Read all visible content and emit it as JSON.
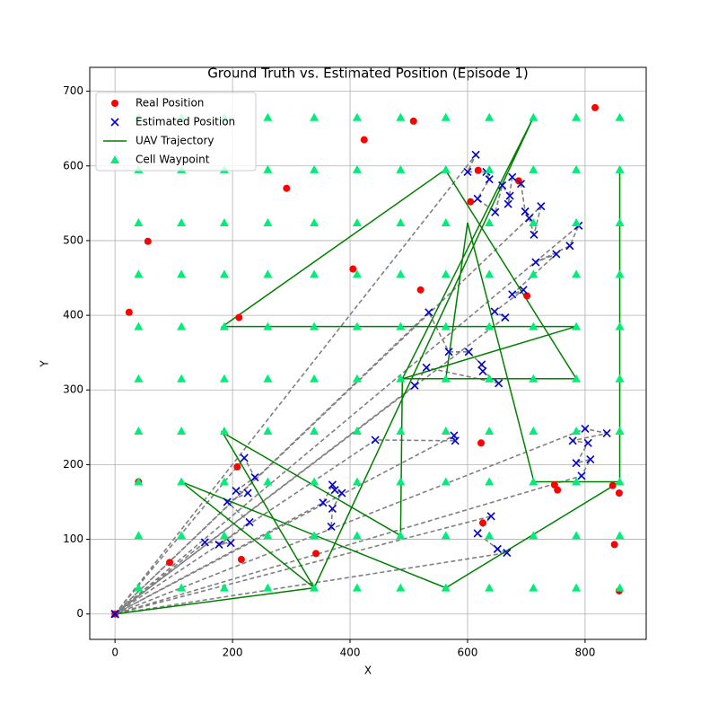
{
  "chart_data": {
    "type": "scatter",
    "title": "Ground Truth vs. Estimated Position (Episode 1)",
    "x_label": "X",
    "y_label": "Y",
    "xlim": [
      -43,
      904
    ],
    "ylim": [
      -34,
      732
    ],
    "xticks": [
      0,
      200,
      400,
      600,
      800
    ],
    "yticks": [
      0,
      100,
      200,
      300,
      400,
      500,
      600,
      700
    ],
    "grid": true,
    "legend": "upper left",
    "series": [
      {
        "name": "Real Position",
        "color": "#ff0000",
        "marker": "circle",
        "x": [
          0,
          24,
          56,
          40,
          93,
          208,
          215,
          292,
          342,
          405,
          424,
          508,
          520,
          605,
          618,
          623,
          626,
          687,
          701,
          748,
          753,
          817,
          850,
          847,
          858,
          858,
          211
        ],
        "y": [
          0,
          404,
          499,
          177,
          69,
          197,
          73,
          570,
          81,
          462,
          635,
          660,
          434,
          552,
          594,
          229,
          122,
          580,
          426,
          173,
          166,
          678,
          93,
          172,
          162,
          31,
          397
        ]
      },
      {
        "name": "Estimated Position",
        "color": "#0000cc",
        "marker": "x",
        "x": [
          0,
          614,
          600,
          632,
          637,
          617,
          647,
          659,
          672,
          669,
          676,
          691,
          698,
          705,
          713,
          725,
          0,
          789,
          774,
          716,
          751,
          676,
          695,
          646,
          664,
          0,
          534,
          568,
          602,
          624,
          626,
          653,
          530,
          510,
          0,
          577,
          579,
          443,
          0,
          640,
          617,
          651,
          667,
          0,
          800,
          837,
          779,
          805,
          785,
          809,
          794,
          0,
          220,
          238,
          206,
          226,
          191,
          229,
          177,
          197,
          153,
          0,
          354,
          370,
          374,
          386,
          370,
          368
        ],
        "y": [
          0,
          615,
          592,
          592,
          582,
          556,
          538,
          574,
          560,
          549,
          585,
          576,
          539,
          530,
          508,
          546,
          0,
          520,
          493,
          471,
          482,
          428,
          434,
          405,
          397,
          0,
          404,
          351,
          351,
          334,
          325,
          309,
          330,
          306,
          0,
          239,
          232,
          233,
          0,
          131,
          108,
          87,
          82,
          0,
          248,
          242,
          232,
          229,
          202,
          207,
          185,
          0,
          209,
          183,
          165,
          162,
          150,
          123,
          93,
          95,
          96,
          0,
          149,
          173,
          166,
          162,
          141,
          117
        ]
      },
      {
        "name": "UAV Trajectory",
        "color": "#008000",
        "marker": "line",
        "x": [
          0,
          339,
          183,
          486,
          489,
          785,
          183,
          562,
          785,
          489,
          712,
          339,
          113,
          563,
          859,
          859,
          859,
          713,
          600,
          563
        ],
        "y": [
          0,
          35,
          243,
          105,
          315,
          385,
          385,
          595,
          315,
          315,
          665,
          35,
          177,
          35,
          177,
          595,
          177,
          177,
          524,
          315
        ]
      },
      {
        "name": "Cell Waypoint",
        "color": "#00ee77",
        "marker": "triangle",
        "x": [
          40,
          113,
          186,
          260,
          339,
          412,
          486,
          563,
          637,
          712,
          785,
          859,
          40,
          113,
          186,
          260,
          339,
          412,
          486,
          563,
          637,
          712,
          785,
          859,
          40,
          113,
          186,
          260,
          339,
          412,
          486,
          563,
          637,
          712,
          785,
          859,
          40,
          113,
          186,
          260,
          339,
          412,
          486,
          563,
          637,
          712,
          785,
          859,
          40,
          113,
          186,
          260,
          339,
          412,
          486,
          563,
          637,
          712,
          785,
          859,
          40,
          113,
          186,
          260,
          339,
          412,
          486,
          563,
          637,
          712,
          785,
          859,
          40,
          113,
          186,
          260,
          339,
          412,
          486,
          563,
          637,
          712,
          785,
          859,
          40,
          113,
          186,
          260,
          339,
          412,
          486,
          563,
          637,
          712,
          785,
          859,
          40,
          113,
          186,
          260,
          339,
          412,
          486,
          563,
          637,
          712,
          785,
          859,
          40,
          113,
          186,
          260,
          339,
          412,
          486,
          563,
          637,
          712,
          785,
          859
        ],
        "y": [
          665,
          665,
          665,
          665,
          665,
          665,
          665,
          665,
          665,
          665,
          665,
          665,
          595,
          595,
          595,
          595,
          595,
          595,
          595,
          595,
          595,
          595,
          595,
          595,
          524,
          524,
          524,
          524,
          524,
          524,
          524,
          524,
          524,
          524,
          524,
          524,
          455,
          455,
          455,
          455,
          455,
          455,
          455,
          455,
          455,
          455,
          455,
          455,
          385,
          385,
          385,
          385,
          385,
          385,
          385,
          385,
          385,
          385,
          385,
          385,
          315,
          315,
          315,
          315,
          315,
          315,
          315,
          315,
          315,
          315,
          315,
          315,
          245,
          245,
          245,
          245,
          245,
          245,
          245,
          245,
          245,
          245,
          245,
          245,
          177,
          177,
          177,
          177,
          177,
          177,
          177,
          177,
          177,
          177,
          177,
          177,
          105,
          105,
          105,
          105,
          105,
          105,
          105,
          105,
          105,
          105,
          105,
          105,
          35,
          35,
          35,
          35,
          35,
          35,
          35,
          35,
          35,
          35,
          35,
          35
        ]
      }
    ]
  }
}
